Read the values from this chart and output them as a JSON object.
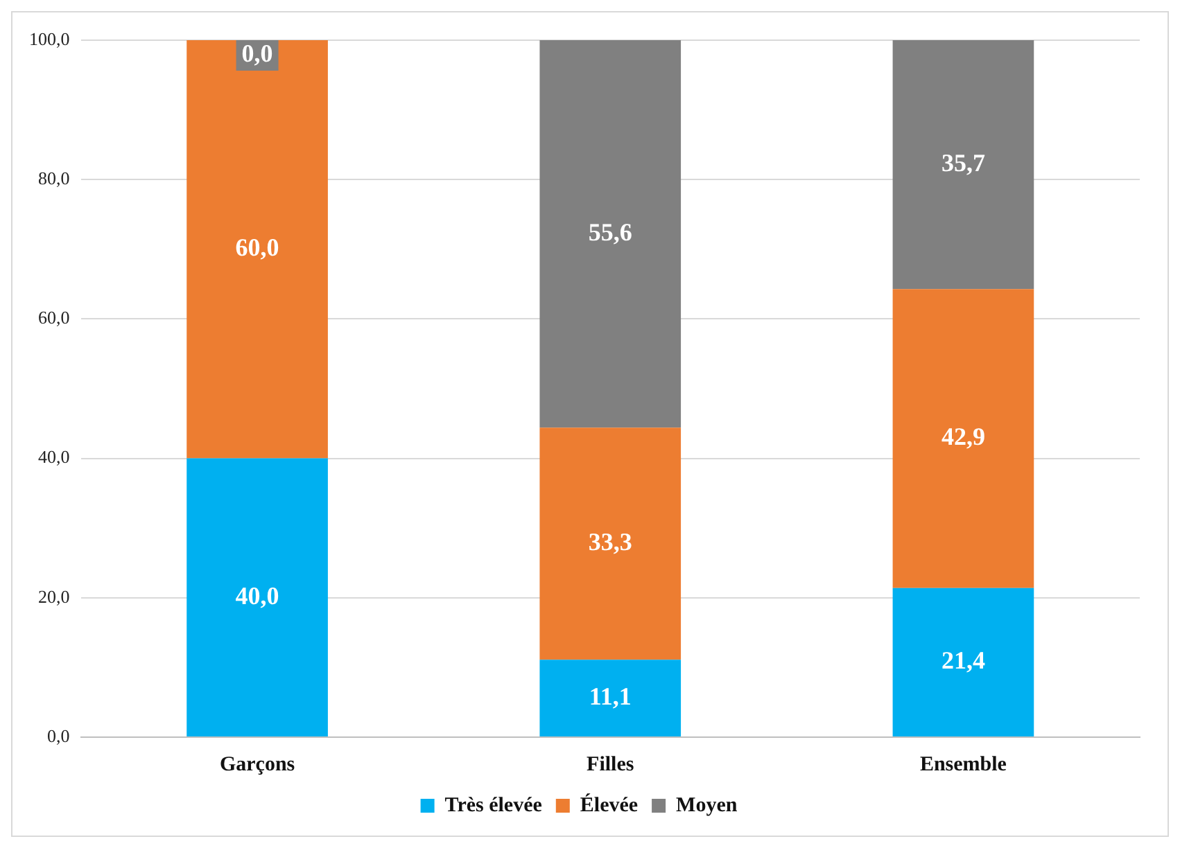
{
  "chart_data": {
    "type": "bar",
    "stacked": true,
    "categories": [
      "Garçons",
      "Filles",
      "Ensemble"
    ],
    "series": [
      {
        "name": "Très élevée",
        "color": "#00b0f0",
        "values": [
          40.0,
          11.1,
          21.4
        ],
        "value_labels": [
          "40,0",
          "11,1",
          "21,4"
        ]
      },
      {
        "name": "Élevée",
        "color": "#ed7d31",
        "values": [
          60.0,
          33.3,
          42.9
        ],
        "value_labels": [
          "60,0",
          "33,3",
          "42,9"
        ]
      },
      {
        "name": "Moyen",
        "color": "#808080",
        "values": [
          0.0,
          55.6,
          35.7
        ],
        "value_labels": [
          "0,0",
          "55,6",
          "35,7"
        ]
      }
    ],
    "ylim": [
      0,
      100
    ],
    "yticks": [
      {
        "value": 0,
        "label": "0,0"
      },
      {
        "value": 20,
        "label": "20,0"
      },
      {
        "value": 40,
        "label": "40,0"
      },
      {
        "value": 60,
        "label": "60,0"
      },
      {
        "value": 80,
        "label": "80,0"
      },
      {
        "value": 100,
        "label": "100,0"
      }
    ],
    "grid": "y",
    "legend": "bottom"
  }
}
